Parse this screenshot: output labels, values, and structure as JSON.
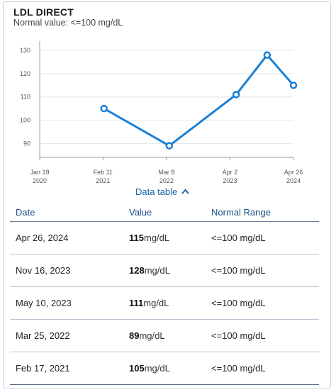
{
  "header": {
    "title": "LDL DIRECT",
    "subtitle": "Normal value: <=100 mg/dL"
  },
  "chart_data": {
    "type": "line",
    "title": "LDL DIRECT",
    "ylabel": "",
    "xlabel": "",
    "ylim": [
      84,
      134
    ],
    "yticks": [
      90,
      100,
      110,
      120,
      130
    ],
    "xticks": [
      {
        "date": "2020-01-19",
        "line1": "Jan 19",
        "line2": "2020"
      },
      {
        "date": "2021-02-11",
        "line1": "Feb 11",
        "line2": "2021"
      },
      {
        "date": "2022-03-08",
        "line1": "Mar 8",
        "line2": "2022"
      },
      {
        "date": "2023-04-02",
        "line1": "Apr 2",
        "line2": "2023"
      },
      {
        "date": "2024-04-26",
        "line1": "Apr 26",
        "line2": "2024"
      }
    ],
    "xlim": [
      "2020-01-19",
      "2024-04-26"
    ],
    "grid": true,
    "color": "#1a7fd6",
    "series": [
      {
        "points": [
          {
            "x": "2021-02-17",
            "y": 105
          },
          {
            "x": "2022-03-25",
            "y": 89
          },
          {
            "x": "2023-05-10",
            "y": 111
          },
          {
            "x": "2023-11-16",
            "y": 128
          },
          {
            "x": "2024-04-26",
            "y": 115
          }
        ]
      }
    ]
  },
  "toggle": {
    "label": "Data table",
    "caret": "^"
  },
  "table": {
    "headers": {
      "date": "Date",
      "value": "Value",
      "range": "Normal Range"
    },
    "rows": [
      {
        "date": "Apr 26, 2024",
        "value": "115",
        "unit": "mg/dL",
        "range": "<=100 mg/dL"
      },
      {
        "date": "Nov 16, 2023",
        "value": "128",
        "unit": "mg/dL",
        "range": "<=100 mg/dL"
      },
      {
        "date": "May 10, 2023",
        "value": "111",
        "unit": "mg/dL",
        "range": "<=100 mg/dL"
      },
      {
        "date": "Mar 25, 2022",
        "value": "89",
        "unit": "mg/dL",
        "range": "<=100 mg/dL"
      },
      {
        "date": "Feb 17, 2021",
        "value": "105",
        "unit": "mg/dL",
        "range": "<=100 mg/dL"
      }
    ]
  }
}
